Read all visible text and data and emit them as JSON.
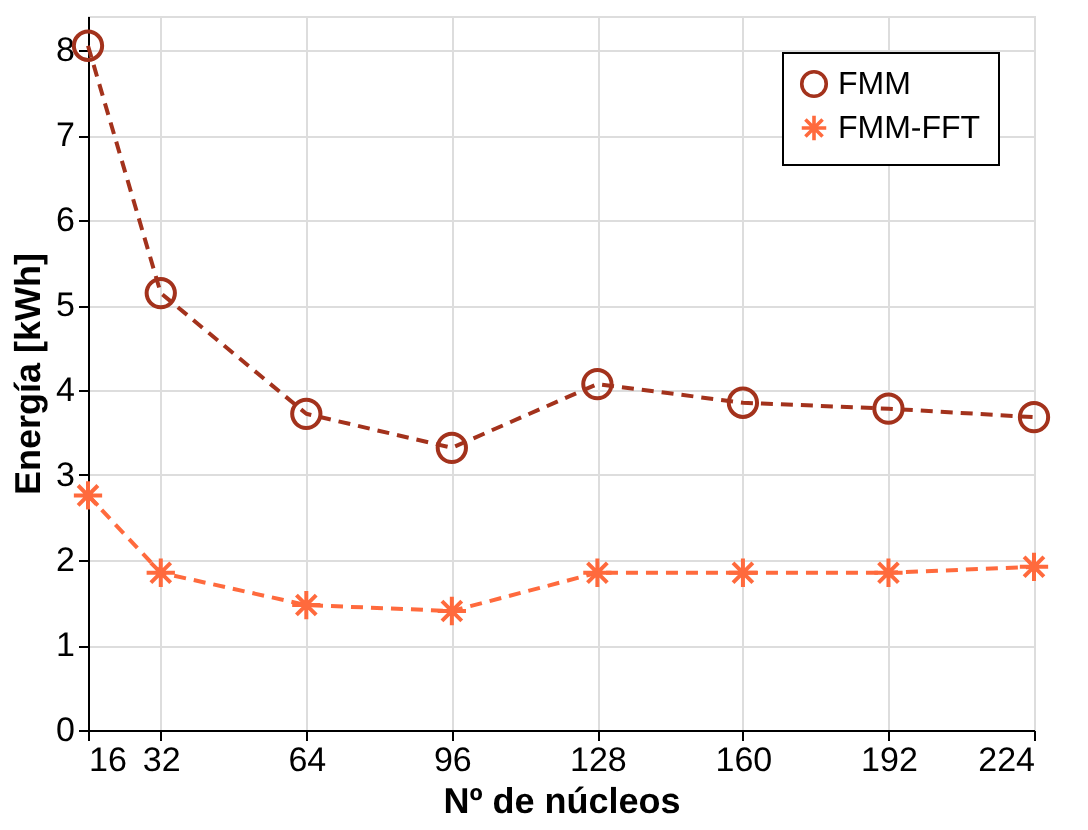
{
  "chart_data": {
    "type": "line",
    "xlabel": "Nº de núcleos",
    "ylabel": "Energía [kWh]",
    "x": [
      16,
      32,
      64,
      96,
      128,
      160,
      192,
      224
    ],
    "series": [
      {
        "name": "FMM",
        "color": "#a3321c",
        "marker": "circle",
        "values": [
          8.05,
          5.14,
          3.72,
          3.32,
          4.07,
          3.85,
          3.78,
          3.68
        ]
      },
      {
        "name": "FMM-FFT",
        "color": "#ff6a3d",
        "marker": "cross",
        "values": [
          2.76,
          1.85,
          1.47,
          1.4,
          1.85,
          1.85,
          1.85,
          1.92
        ]
      }
    ],
    "xlim": [
      16,
      224
    ],
    "xticks": [
      16,
      32,
      64,
      96,
      128,
      160,
      192,
      224
    ],
    "ylim": [
      0,
      8.4
    ],
    "yticks": [
      0,
      1,
      2,
      3,
      4,
      5,
      6,
      7,
      8
    ],
    "grid": true,
    "legend": "top right",
    "line_style": "dashed"
  }
}
